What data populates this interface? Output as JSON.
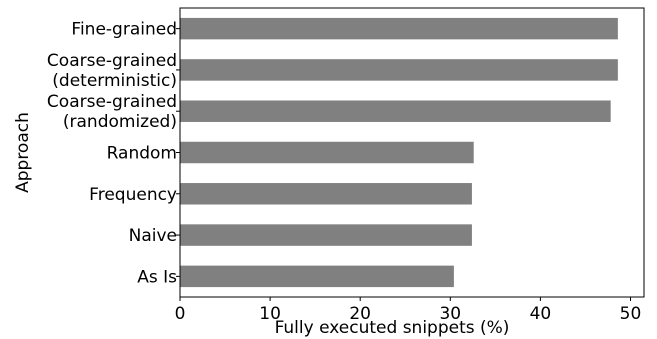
{
  "chart_data": {
    "type": "bar",
    "orientation": "horizontal",
    "categories": [
      [
        "Fine-grained"
      ],
      [
        "Coarse-grained",
        "(deterministic)"
      ],
      [
        "Coarse-grained",
        "(randomized)"
      ],
      [
        "Random"
      ],
      [
        "Frequency"
      ],
      [
        "Naive"
      ],
      [
        "As Is"
      ]
    ],
    "values": [
      48.6,
      48.6,
      47.8,
      32.6,
      32.4,
      32.4,
      30.4
    ],
    "xlabel": "Fully executed snippets (%)",
    "ylabel": "Approach",
    "xlim": [
      0,
      51.5
    ],
    "xticks": [
      0,
      10,
      20,
      30,
      40,
      50
    ],
    "grid": false,
    "bar_color": "#808080"
  }
}
